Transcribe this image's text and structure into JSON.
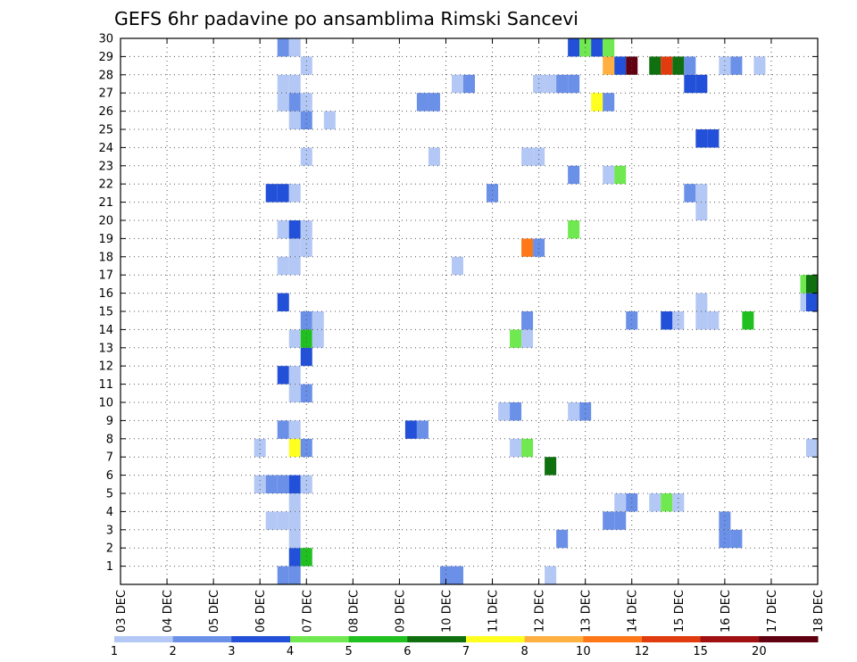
{
  "chart_data": {
    "type": "heatmap",
    "title": "GEFS 6hr padavine po ansamblima Rimski Sancevi",
    "x_tick_labels": [
      "03 DEC",
      "04 DEC",
      "05 DEC",
      "06 DEC",
      "07 DEC",
      "08 DEC",
      "09 DEC",
      "10 DEC",
      "11 DEC",
      "12 DEC",
      "13 DEC",
      "14 DEC",
      "15 DEC",
      "16 DEC",
      "17 DEC",
      "18 DEC"
    ],
    "x_range_days": [
      3,
      18
    ],
    "y_tick_labels": [
      "1",
      "2",
      "3",
      "4",
      "5",
      "6",
      "7",
      "8",
      "9",
      "10",
      "11",
      "12",
      "13",
      "14",
      "15",
      "16",
      "17",
      "18",
      "19",
      "20",
      "21",
      "22",
      "23",
      "24",
      "25",
      "26",
      "27",
      "28",
      "29",
      "30"
    ],
    "y_range_members": [
      0,
      30
    ],
    "grid": true,
    "legend": {
      "placement": "bottom",
      "labels": [
        "1",
        "2",
        "3",
        "4",
        "5",
        "6",
        "7",
        "8",
        "10",
        "12",
        "15",
        "20"
      ],
      "colors": [
        "#b4c8f5",
        "#6a90e8",
        "#2250d8",
        "#70e850",
        "#20c020",
        "#107010",
        "#ffff20",
        "#ffb040",
        "#ff7818",
        "#e03c10",
        "#a01010",
        "#600010"
      ]
    },
    "cells": [
      {
        "day": 6.5,
        "member": 0,
        "level": 2
      },
      {
        "day": 6.75,
        "member": 0,
        "level": 2
      },
      {
        "day": 10,
        "member": 0,
        "level": 2
      },
      {
        "day": 10.25,
        "member": 0,
        "level": 2
      },
      {
        "day": 12.25,
        "member": 0,
        "level": 1
      },
      {
        "day": 6.75,
        "member": 1,
        "level": 3
      },
      {
        "day": 7.0,
        "member": 1,
        "level": 5
      },
      {
        "day": 6.75,
        "member": 2,
        "level": 1
      },
      {
        "day": 12.5,
        "member": 2,
        "level": 2
      },
      {
        "day": 16.0,
        "member": 2,
        "level": 2
      },
      {
        "day": 16.25,
        "member": 2,
        "level": 2
      },
      {
        "day": 6.25,
        "member": 3,
        "level": 1
      },
      {
        "day": 6.5,
        "member": 3,
        "level": 1
      },
      {
        "day": 6.75,
        "member": 3,
        "level": 1
      },
      {
        "day": 13.5,
        "member": 3,
        "level": 2
      },
      {
        "day": 13.75,
        "member": 3,
        "level": 2
      },
      {
        "day": 16.0,
        "member": 3,
        "level": 2
      },
      {
        "day": 6.75,
        "member": 4,
        "level": 1
      },
      {
        "day": 13.75,
        "member": 4,
        "level": 1
      },
      {
        "day": 14.0,
        "member": 4,
        "level": 2
      },
      {
        "day": 14.5,
        "member": 4,
        "level": 1
      },
      {
        "day": 14.75,
        "member": 4,
        "level": 4
      },
      {
        "day": 15.0,
        "member": 4,
        "level": 1
      },
      {
        "day": 6.0,
        "member": 5,
        "level": 1
      },
      {
        "day": 6.25,
        "member": 5,
        "level": 2
      },
      {
        "day": 6.5,
        "member": 5,
        "level": 2
      },
      {
        "day": 6.75,
        "member": 5,
        "level": 3
      },
      {
        "day": 7.0,
        "member": 5,
        "level": 1
      },
      {
        "day": 12.25,
        "member": 6,
        "level": 6
      },
      {
        "day": 6.0,
        "member": 7,
        "level": 1
      },
      {
        "day": 6.75,
        "member": 7,
        "level": 7
      },
      {
        "day": 7.0,
        "member": 7,
        "level": 2
      },
      {
        "day": 11.5,
        "member": 7,
        "level": 1
      },
      {
        "day": 11.75,
        "member": 7,
        "level": 4
      },
      {
        "day": 18.0,
        "member": 7,
        "level": 1
      },
      {
        "day": 6.5,
        "member": 8,
        "level": 2
      },
      {
        "day": 6.75,
        "member": 8,
        "level": 1
      },
      {
        "day": 9.25,
        "member": 8,
        "level": 3
      },
      {
        "day": 9.5,
        "member": 8,
        "level": 2
      },
      {
        "day": 11.25,
        "member": 9,
        "level": 1
      },
      {
        "day": 11.5,
        "member": 9,
        "level": 2
      },
      {
        "day": 12.75,
        "member": 9,
        "level": 1
      },
      {
        "day": 13.0,
        "member": 9,
        "level": 2
      },
      {
        "day": 6.75,
        "member": 10,
        "level": 1
      },
      {
        "day": 7.0,
        "member": 10,
        "level": 2
      },
      {
        "day": 6.5,
        "member": 11,
        "level": 3
      },
      {
        "day": 6.75,
        "member": 11,
        "level": 1
      },
      {
        "day": 7.0,
        "member": 12,
        "level": 3
      },
      {
        "day": 6.75,
        "member": 13,
        "level": 1
      },
      {
        "day": 7.0,
        "member": 13,
        "level": 5
      },
      {
        "day": 7.25,
        "member": 13,
        "level": 1
      },
      {
        "day": 11.5,
        "member": 13,
        "level": 4
      },
      {
        "day": 11.75,
        "member": 13,
        "level": 1
      },
      {
        "day": 7.0,
        "member": 14,
        "level": 2
      },
      {
        "day": 7.25,
        "member": 14,
        "level": 1
      },
      {
        "day": 11.75,
        "member": 14,
        "level": 2
      },
      {
        "day": 14.0,
        "member": 14,
        "level": 2
      },
      {
        "day": 14.75,
        "member": 14,
        "level": 3
      },
      {
        "day": 15.0,
        "member": 14,
        "level": 1
      },
      {
        "day": 15.5,
        "member": 14,
        "level": 1
      },
      {
        "day": 15.75,
        "member": 14,
        "level": 1
      },
      {
        "day": 16.5,
        "member": 14,
        "level": 5
      },
      {
        "day": 6.5,
        "member": 15,
        "level": 3
      },
      {
        "day": 15.5,
        "member": 15,
        "level": 1
      },
      {
        "day": 17.75,
        "member": 15,
        "level": 1
      },
      {
        "day": 18.0,
        "member": 15,
        "level": 3
      },
      {
        "day": 17.75,
        "member": 16,
        "level": 4
      },
      {
        "day": 18.0,
        "member": 16,
        "level": 6
      },
      {
        "day": 6.5,
        "member": 17,
        "level": 1
      },
      {
        "day": 6.75,
        "member": 17,
        "level": 1
      },
      {
        "day": 10.25,
        "member": 17,
        "level": 1
      },
      {
        "day": 6.75,
        "member": 18,
        "level": 1
      },
      {
        "day": 7.0,
        "member": 18,
        "level": 1
      },
      {
        "day": 11.75,
        "member": 18,
        "level": 9
      },
      {
        "day": 12.0,
        "member": 18,
        "level": 2
      },
      {
        "day": 6.5,
        "member": 19,
        "level": 1
      },
      {
        "day": 6.75,
        "member": 19,
        "level": 3
      },
      {
        "day": 7.0,
        "member": 19,
        "level": 1
      },
      {
        "day": 12.75,
        "member": 19,
        "level": 4
      },
      {
        "day": 15.5,
        "member": 20,
        "level": 1
      },
      {
        "day": 6.25,
        "member": 21,
        "level": 3
      },
      {
        "day": 6.5,
        "member": 21,
        "level": 3
      },
      {
        "day": 6.75,
        "member": 21,
        "level": 1
      },
      {
        "day": 11.0,
        "member": 21,
        "level": 2
      },
      {
        "day": 15.25,
        "member": 21,
        "level": 2
      },
      {
        "day": 15.5,
        "member": 21,
        "level": 1
      },
      {
        "day": 12.75,
        "member": 22,
        "level": 2
      },
      {
        "day": 13.5,
        "member": 22,
        "level": 1
      },
      {
        "day": 13.75,
        "member": 22,
        "level": 4
      },
      {
        "day": 7.0,
        "member": 23,
        "level": 1
      },
      {
        "day": 9.75,
        "member": 23,
        "level": 1
      },
      {
        "day": 11.75,
        "member": 23,
        "level": 1
      },
      {
        "day": 12.0,
        "member": 23,
        "level": 1
      },
      {
        "day": 15.5,
        "member": 24,
        "level": 3
      },
      {
        "day": 15.75,
        "member": 24,
        "level": 3
      },
      {
        "day": 6.75,
        "member": 25,
        "level": 1
      },
      {
        "day": 7.0,
        "member": 25,
        "level": 2
      },
      {
        "day": 7.5,
        "member": 25,
        "level": 1
      },
      {
        "day": 6.5,
        "member": 26,
        "level": 1
      },
      {
        "day": 6.75,
        "member": 26,
        "level": 2
      },
      {
        "day": 7.0,
        "member": 26,
        "level": 1
      },
      {
        "day": 9.5,
        "member": 26,
        "level": 2
      },
      {
        "day": 9.75,
        "member": 26,
        "level": 2
      },
      {
        "day": 13.25,
        "member": 26,
        "level": 7
      },
      {
        "day": 13.5,
        "member": 26,
        "level": 2
      },
      {
        "day": 6.5,
        "member": 27,
        "level": 1
      },
      {
        "day": 6.75,
        "member": 27,
        "level": 1
      },
      {
        "day": 10.25,
        "member": 27,
        "level": 1
      },
      {
        "day": 10.5,
        "member": 27,
        "level": 2
      },
      {
        "day": 12.0,
        "member": 27,
        "level": 1
      },
      {
        "day": 12.25,
        "member": 27,
        "level": 1
      },
      {
        "day": 12.5,
        "member": 27,
        "level": 2
      },
      {
        "day": 12.75,
        "member": 27,
        "level": 2
      },
      {
        "day": 15.25,
        "member": 27,
        "level": 3
      },
      {
        "day": 15.5,
        "member": 27,
        "level": 3
      },
      {
        "day": 7.0,
        "member": 28,
        "level": 1
      },
      {
        "day": 13.5,
        "member": 28,
        "level": 8
      },
      {
        "day": 13.75,
        "member": 28,
        "level": 3
      },
      {
        "day": 14.0,
        "member": 28,
        "level": 12
      },
      {
        "day": 14.5,
        "member": 28,
        "level": 6
      },
      {
        "day": 14.75,
        "member": 28,
        "level": 10
      },
      {
        "day": 15.0,
        "member": 28,
        "level": 6
      },
      {
        "day": 15.25,
        "member": 28,
        "level": 2
      },
      {
        "day": 16.0,
        "member": 28,
        "level": 1
      },
      {
        "day": 16.25,
        "member": 28,
        "level": 2
      },
      {
        "day": 16.75,
        "member": 28,
        "level": 1
      },
      {
        "day": 6.5,
        "member": 29,
        "level": 2
      },
      {
        "day": 6.75,
        "member": 29,
        "level": 1
      },
      {
        "day": 12.75,
        "member": 29,
        "level": 3
      },
      {
        "day": 13.0,
        "member": 29,
        "level": 4
      },
      {
        "day": 13.25,
        "member": 29,
        "level": 3
      },
      {
        "day": 13.5,
        "member": 29,
        "level": 4
      }
    ]
  }
}
